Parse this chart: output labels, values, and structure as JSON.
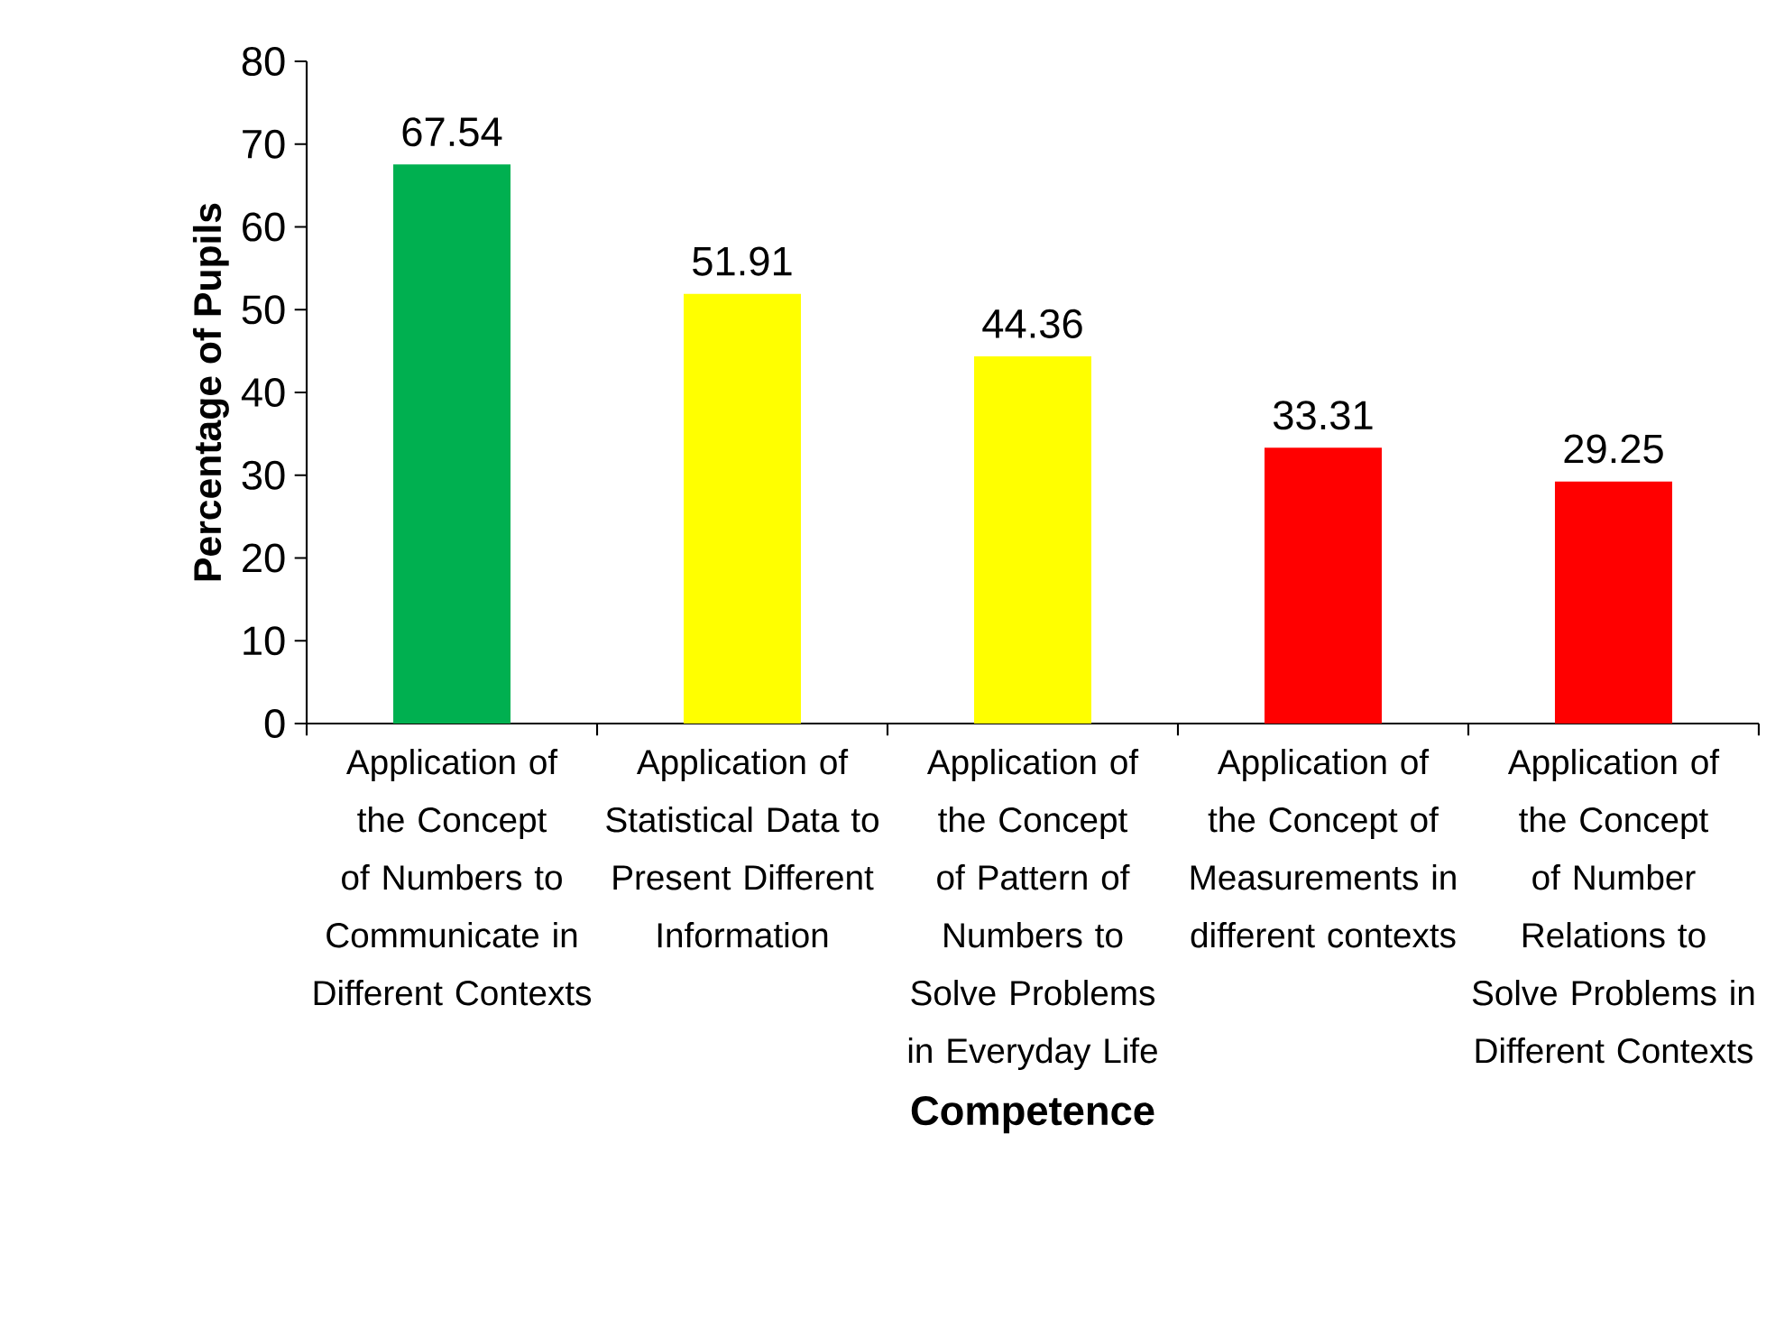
{
  "chart_data": {
    "type": "bar",
    "xlabel": "Competence",
    "ylabel": "Percentage of Pupils",
    "categories": [
      "Application of the Concept of Numbers to Communicate in Different Contexts",
      "Application of Statistical Data to Present Different Information",
      "Application of the Concept of Pattern of Numbers to Solve Problems in Everyday Life",
      "Application of the Concept of Measurements in different contexts",
      "Application of the Concept of Number Relations to Solve Problems in Different Contexts"
    ],
    "values": [
      67.54,
      51.91,
      44.36,
      33.31,
      29.25
    ],
    "colors": [
      "#00b050",
      "#ffff00",
      "#ffff00",
      "#ff0000",
      "#ff0000"
    ],
    "ylim": [
      0,
      80
    ],
    "yticks": [
      0,
      10,
      20,
      30,
      40,
      50,
      60,
      70,
      80
    ],
    "data_labels": true,
    "grid": false
  }
}
